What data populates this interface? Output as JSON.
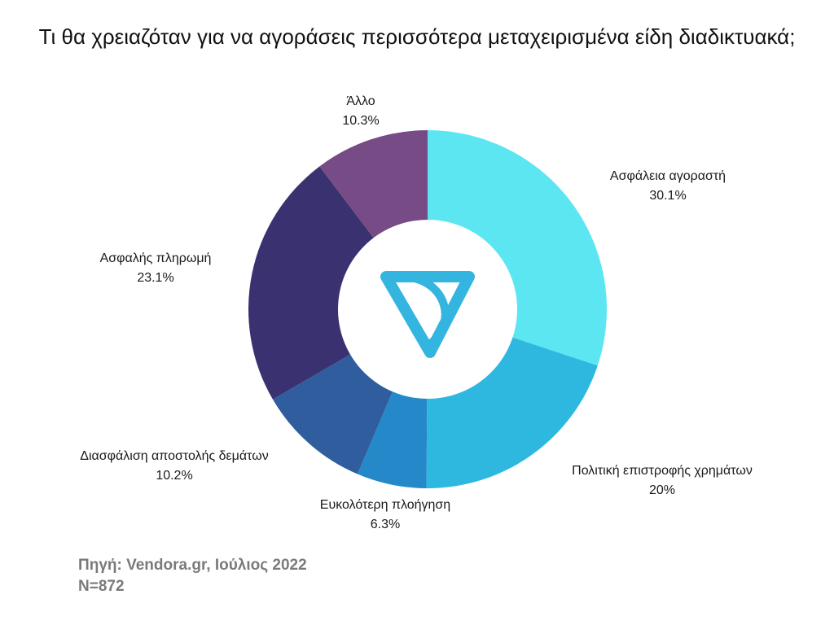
{
  "chart_data": {
    "type": "pie",
    "title": "Τι θα χρειαζόταν για να αγοράσεις περισσότερα μεταχειρισμένα είδη διαδικτυακά;",
    "slices": [
      {
        "label": "Ασφάλεια αγοραστή",
        "value": 30.1,
        "display": "30.1%",
        "color": "#5ce6f2"
      },
      {
        "label": "Πολιτική επιστροφής χρημάτων",
        "value": 20,
        "display": "20%",
        "color": "#2eb8e0"
      },
      {
        "label": "Ευκολότερη πλοήγηση",
        "value": 6.3,
        "display": "6.3%",
        "color": "#2589c9"
      },
      {
        "label": "Διασφάλιση αποστολής δεμάτων",
        "value": 10.2,
        "display": "10.2%",
        "color": "#2f5d9e"
      },
      {
        "label": "Ασφαλής πληρωμή",
        "value": 23.1,
        "display": "23.1%",
        "color": "#3a3170"
      },
      {
        "label": "Άλλο",
        "value": 10.3,
        "display": "10.3%",
        "color": "#764b86"
      }
    ]
  },
  "logo": {
    "name": "vendora-logo-icon",
    "color": "#33b5e0"
  },
  "footer": {
    "source": "Πηγή: Vendora.gr, Ιούλιος 2022",
    "sample": "N=872"
  }
}
